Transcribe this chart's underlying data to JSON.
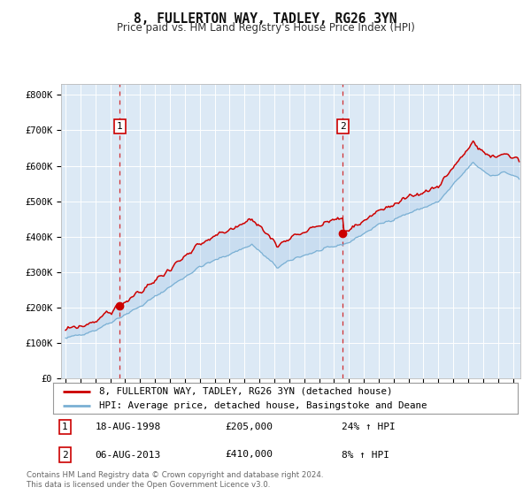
{
  "title": "8, FULLERTON WAY, TADLEY, RG26 3YN",
  "subtitle": "Price paid vs. HM Land Registry's House Price Index (HPI)",
  "bg_color": "#dce9f5",
  "fig_bg_color": "#ffffff",
  "grid_color": "#ffffff",
  "red_line_color": "#cc0000",
  "blue_line_color": "#7ab0d4",
  "purchase1_date": 1998.63,
  "purchase1_price": 205000,
  "purchase2_date": 2013.59,
  "purchase2_price": 410000,
  "ylabel_values": [
    0,
    100000,
    200000,
    300000,
    400000,
    500000,
    600000,
    700000,
    800000
  ],
  "ylabel_texts": [
    "£0",
    "£100K",
    "£200K",
    "£300K",
    "£400K",
    "£500K",
    "£600K",
    "£700K",
    "£800K"
  ],
  "xmin": 1994.7,
  "xmax": 2025.5,
  "ymin": 0,
  "ymax": 830000,
  "legend_line1": "8, FULLERTON WAY, TADLEY, RG26 3YN (detached house)",
  "legend_line2": "HPI: Average price, detached house, Basingstoke and Deane",
  "annotation1_date": "18-AUG-1998",
  "annotation1_price": "£205,000",
  "annotation1_hpi": "24% ↑ HPI",
  "annotation2_date": "06-AUG-2013",
  "annotation2_price": "£410,000",
  "annotation2_hpi": "8% ↑ HPI",
  "footer": "Contains HM Land Registry data © Crown copyright and database right 2024.\nThis data is licensed under the Open Government Licence v3.0."
}
